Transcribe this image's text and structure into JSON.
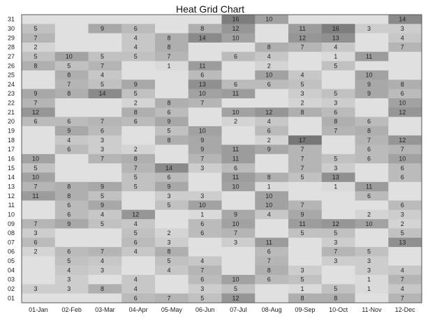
{
  "chart_data": {
    "type": "heatmap",
    "title": "Heat Grid Chart",
    "xlabel": "",
    "ylabel": "",
    "legend": "none",
    "grid": false,
    "x_categories": [
      "01-Jan",
      "02-Feb",
      "03-Mar",
      "04-Apr",
      "05-May",
      "06-Jun",
      "07-Jul",
      "08-Aug",
      "09-Sep",
      "10-Oct",
      "11-Nov",
      "12-Dec"
    ],
    "y_categories": [
      "01",
      "02",
      "03",
      "04",
      "05",
      "06",
      "07",
      "08",
      "09",
      "10",
      "11",
      "12",
      "13",
      "14",
      "15",
      "16",
      "17",
      "18",
      "19",
      "20",
      "21",
      "22",
      "23",
      "24",
      "25",
      "26",
      "27",
      "28",
      "29",
      "30",
      "31"
    ],
    "value_range": [
      0,
      17
    ],
    "color_scale": {
      "low": "#e0e0e0",
      "high": "#777777"
    },
    "rows": [
      {
        "y": "31",
        "values": [
          null,
          null,
          null,
          null,
          null,
          null,
          16,
          10,
          null,
          null,
          null,
          14
        ]
      },
      {
        "y": "30",
        "values": [
          5,
          null,
          9,
          6,
          null,
          8,
          12,
          null,
          11,
          16,
          3,
          3
        ]
      },
      {
        "y": "29",
        "values": [
          7,
          null,
          null,
          4,
          8,
          14,
          10,
          null,
          12,
          13,
          null,
          4
        ]
      },
      {
        "y": "28",
        "values": [
          2,
          null,
          null,
          4,
          8,
          null,
          null,
          8,
          7,
          4,
          null,
          7
        ]
      },
      {
        "y": "27",
        "values": [
          5,
          10,
          5,
          5,
          7,
          null,
          6,
          4,
          null,
          1,
          11,
          null
        ]
      },
      {
        "y": "26",
        "values": [
          8,
          5,
          7,
          null,
          1,
          11,
          null,
          2,
          null,
          5,
          null,
          null
        ]
      },
      {
        "y": "25",
        "values": [
          null,
          8,
          4,
          null,
          null,
          6,
          null,
          10,
          4,
          null,
          10,
          null
        ]
      },
      {
        "y": "24",
        "values": [
          null,
          7,
          5,
          9,
          null,
          13,
          6,
          6,
          5,
          null,
          9,
          8
        ]
      },
      {
        "y": "23",
        "values": [
          9,
          8,
          14,
          5,
          null,
          10,
          11,
          null,
          3,
          5,
          9,
          6
        ]
      },
      {
        "y": "22",
        "values": [
          7,
          null,
          null,
          2,
          8,
          7,
          null,
          null,
          2,
          3,
          null,
          10
        ]
      },
      {
        "y": "21",
        "values": [
          12,
          null,
          null,
          8,
          6,
          null,
          10,
          12,
          8,
          6,
          null,
          12
        ]
      },
      {
        "y": "20",
        "values": [
          6,
          6,
          7,
          6,
          9,
          null,
          2,
          4,
          null,
          8,
          6,
          null
        ]
      },
      {
        "y": "19",
        "values": [
          null,
          9,
          6,
          null,
          5,
          10,
          null,
          6,
          null,
          7,
          8,
          null
        ]
      },
      {
        "y": "18",
        "values": [
          null,
          4,
          3,
          null,
          8,
          9,
          null,
          2,
          17,
          null,
          7,
          12
        ]
      },
      {
        "y": "17",
        "values": [
          null,
          6,
          3,
          2,
          null,
          9,
          11,
          9,
          7,
          null,
          6,
          7
        ]
      },
      {
        "y": "16",
        "values": [
          10,
          null,
          7,
          8,
          null,
          7,
          11,
          null,
          7,
          5,
          6,
          10
        ]
      },
      {
        "y": "15",
        "values": [
          5,
          null,
          null,
          7,
          14,
          3,
          6,
          null,
          7,
          3,
          null,
          6
        ]
      },
      {
        "y": "14",
        "values": [
          10,
          null,
          null,
          5,
          6,
          null,
          11,
          8,
          5,
          13,
          null,
          6
        ]
      },
      {
        "y": "13",
        "values": [
          7,
          8,
          9,
          5,
          9,
          null,
          10,
          1,
          null,
          1,
          11,
          null
        ]
      },
      {
        "y": "12",
        "values": [
          11,
          8,
          5,
          null,
          3,
          3,
          null,
          10,
          null,
          null,
          6,
          null
        ]
      },
      {
        "y": "11",
        "values": [
          null,
          6,
          9,
          null,
          5,
          10,
          null,
          10,
          7,
          null,
          null,
          6
        ]
      },
      {
        "y": "10",
        "values": [
          null,
          6,
          4,
          12,
          null,
          1,
          9,
          4,
          9,
          null,
          2,
          3
        ]
      },
      {
        "y": "09",
        "values": [
          7,
          9,
          5,
          4,
          null,
          6,
          10,
          null,
          11,
          12,
          10,
          2
        ]
      },
      {
        "y": "08",
        "values": [
          3,
          null,
          null,
          5,
          2,
          6,
          7,
          null,
          5,
          5,
          null,
          5
        ]
      },
      {
        "y": "07",
        "values": [
          6,
          null,
          null,
          6,
          3,
          null,
          3,
          11,
          null,
          3,
          null,
          13
        ]
      },
      {
        "y": "06",
        "values": [
          2,
          6,
          7,
          4,
          8,
          null,
          null,
          6,
          null,
          7,
          5,
          null
        ]
      },
      {
        "y": "05",
        "values": [
          null,
          5,
          4,
          null,
          5,
          4,
          null,
          7,
          null,
          3,
          3,
          null
        ]
      },
      {
        "y": "04",
        "values": [
          null,
          4,
          3,
          null,
          4,
          7,
          null,
          8,
          3,
          null,
          3,
          4
        ]
      },
      {
        "y": "03",
        "values": [
          null,
          3,
          null,
          4,
          null,
          6,
          10,
          6,
          5,
          null,
          1,
          7
        ]
      },
      {
        "y": "02",
        "values": [
          3,
          3,
          8,
          4,
          null,
          3,
          5,
          null,
          1,
          5,
          1,
          4
        ]
      },
      {
        "y": "01",
        "values": [
          null,
          null,
          null,
          6,
          7,
          5,
          12,
          null,
          8,
          8,
          null,
          7
        ]
      }
    ]
  }
}
